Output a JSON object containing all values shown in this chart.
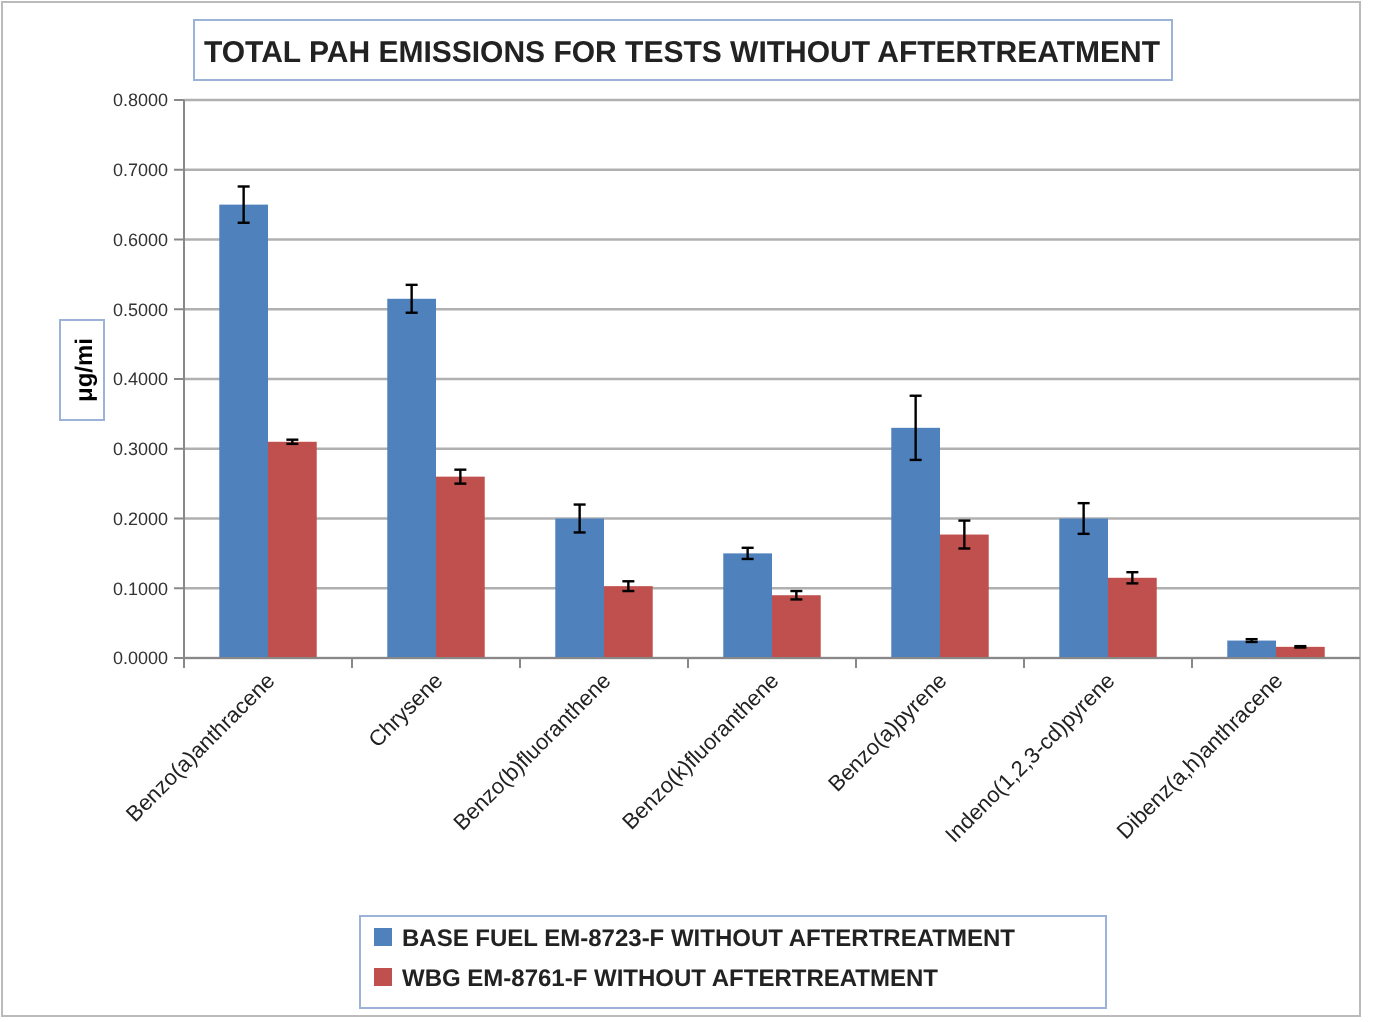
{
  "chart_data": {
    "type": "bar",
    "title": "TOTAL PAH EMISSIONS FOR TESTS WITHOUT AFTERTREATMENT",
    "ylabel": "μg/mi",
    "categories": [
      "Benzo(a)anthracene",
      "Chrysene",
      "Benzo(b)fluoranthene",
      "Benzo(k)fluoranthene",
      "Benzo(a)pyrene",
      "Indeno(1,2,3-cd)pyrene",
      "Dibenz(a,h)anthracene"
    ],
    "series": [
      {
        "name": "BASE FUEL EM-8723-F WITHOUT AFTERTREATMENT",
        "color": "#4f81bd",
        "values": [
          0.65,
          0.515,
          0.2,
          0.15,
          0.33,
          0.2,
          0.025
        ],
        "errors": [
          0.026,
          0.02,
          0.02,
          0.008,
          0.046,
          0.022,
          0.002
        ]
      },
      {
        "name": "WBG EM-8761-F WITHOUT AFTERTREATMENT",
        "color": "#c0504d",
        "values": [
          0.31,
          0.26,
          0.103,
          0.09,
          0.177,
          0.115,
          0.016
        ],
        "errors": [
          0.003,
          0.01,
          0.007,
          0.006,
          0.02,
          0.008,
          0.001
        ]
      }
    ],
    "ylim": [
      0,
      0.8
    ],
    "yticks": [
      {
        "value": 0,
        "label": "0.0000"
      },
      {
        "value": 0.1,
        "label": "0.1000"
      },
      {
        "value": 0.2,
        "label": "0.2000"
      },
      {
        "value": 0.3,
        "label": "0.3000"
      },
      {
        "value": 0.4,
        "label": "0.4000"
      },
      {
        "value": 0.5,
        "label": "0.5000"
      },
      {
        "value": 0.6,
        "label": "0.6000"
      },
      {
        "value": 0.7,
        "label": "0.7000"
      },
      {
        "value": 0.8,
        "label": "0.8000"
      }
    ],
    "grid": "y",
    "legend": "bottom"
  }
}
